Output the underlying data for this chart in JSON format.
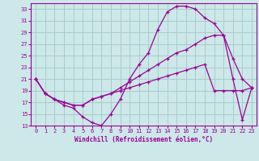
{
  "xlabel": "Windchill (Refroidissement éolien,°C)",
  "bg_color": "#cce8e8",
  "grid_color": "#aacccc",
  "line_color": "#990099",
  "xlim": [
    -0.5,
    23.5
  ],
  "ylim": [
    13,
    34
  ],
  "yticks": [
    13,
    15,
    17,
    19,
    21,
    23,
    25,
    27,
    29,
    31,
    33
  ],
  "xticks": [
    0,
    1,
    2,
    3,
    4,
    5,
    6,
    7,
    8,
    9,
    10,
    11,
    12,
    13,
    14,
    15,
    16,
    17,
    18,
    19,
    20,
    21,
    22,
    23
  ],
  "line1_x": [
    0,
    1,
    2,
    3,
    4,
    5,
    6,
    7,
    8,
    9,
    10,
    11,
    12,
    13,
    14,
    15,
    16,
    17,
    18,
    19,
    20,
    21,
    22,
    23
  ],
  "line1_y": [
    21.0,
    18.5,
    17.5,
    16.5,
    16.0,
    14.5,
    13.5,
    13.0,
    15.0,
    17.5,
    21.0,
    23.5,
    25.5,
    29.5,
    32.5,
    33.5,
    33.5,
    33.0,
    31.5,
    30.5,
    28.5,
    24.5,
    21.0,
    19.5
  ],
  "line2_x": [
    0,
    1,
    2,
    3,
    4,
    5,
    6,
    7,
    8,
    9,
    10,
    11,
    12,
    13,
    14,
    15,
    16,
    17,
    18,
    19,
    20,
    21,
    22,
    23
  ],
  "line2_y": [
    21.0,
    18.5,
    17.5,
    17.0,
    16.5,
    16.5,
    17.5,
    18.0,
    18.5,
    19.5,
    20.5,
    21.5,
    22.5,
    23.5,
    24.5,
    25.5,
    26.0,
    27.0,
    28.0,
    28.5,
    28.5,
    21.0,
    14.0,
    19.5
  ],
  "line3_x": [
    0,
    1,
    2,
    3,
    4,
    5,
    6,
    7,
    8,
    9,
    10,
    11,
    12,
    13,
    14,
    15,
    16,
    17,
    18,
    19,
    20,
    21,
    22,
    23
  ],
  "line3_y": [
    21.0,
    18.5,
    17.5,
    17.0,
    16.5,
    16.5,
    17.5,
    18.0,
    18.5,
    19.0,
    19.5,
    20.0,
    20.5,
    21.0,
    21.5,
    22.0,
    22.5,
    23.0,
    23.5,
    19.0,
    19.0,
    19.0,
    19.0,
    19.5
  ]
}
